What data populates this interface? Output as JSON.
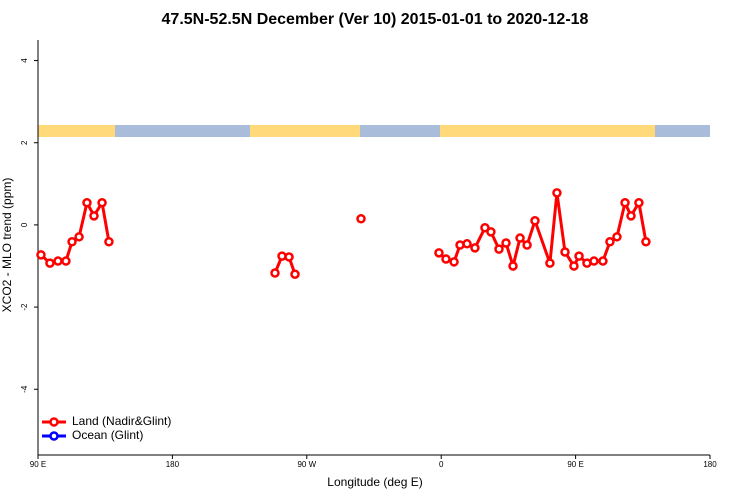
{
  "chart_data": {
    "type": "line",
    "title": "47.5N-52.5N December (Ver 10)   2015-01-01 to 2020-12-18",
    "x_label": "Longitude (deg E)",
    "y_label": "XCO2 - MLO trend (ppm)",
    "xlim": [
      90,
      540
    ],
    "ylim": [
      -5.6,
      4.5
    ],
    "xticks": [
      {
        "value": 90,
        "label": "90 E"
      },
      180,
      {
        "value": 270,
        "label": "90 W"
      },
      {
        "value": 360,
        "label": "0"
      },
      {
        "value": 450,
        "label": "90 E"
      },
      {
        "value": 540,
        "label": "180"
      }
    ],
    "yticks": [
      -4,
      -2,
      0,
      2,
      4
    ],
    "legend": "bottom-left",
    "x": [
      92.0,
      98.0,
      103.4,
      108.7,
      112.8,
      117.5,
      122.8,
      127.5,
      132.9,
      137.5,
      190,
      248.7,
      253.4,
      258.1,
      262.1,
      285,
      306.3,
      330,
      358.5,
      363.2,
      368.6,
      372.6,
      377.3,
      382.6,
      389.3,
      393.3,
      398.7,
      403.4,
      408.1,
      412.8,
      417.5,
      422.8,
      432.8,
      437.5,
      442.9,
      448.9,
      452.3,
      457.6,
      462.3,
      468.3,
      473.0,
      477.7,
      483.1,
      487.1,
      492.4,
      497.1
    ],
    "series": [
      {
        "name": "Land (Nadir&Glint)",
        "color": "#ff0000",
        "values": [
          -0.73,
          -0.93,
          -0.88,
          -0.88,
          -0.41,
          -0.29,
          0.54,
          0.22,
          0.54,
          -0.41,
          null,
          -1.17,
          -0.76,
          -0.78,
          -1.2,
          null,
          0.15,
          null,
          -0.68,
          -0.83,
          -0.9,
          -0.49,
          -0.46,
          -0.56,
          -0.07,
          -0.17,
          -0.59,
          -0.44,
          -1.0,
          -0.32,
          -0.49,
          0.1,
          -0.93,
          0.78,
          -0.66,
          -1.0,
          -0.76,
          -0.93,
          -0.88,
          -0.88,
          -0.41,
          -0.29,
          0.54,
          0.22,
          0.54,
          -0.41
        ]
      },
      {
        "name": "Ocean (Glint)",
        "color": "#0000ff",
        "values": [
          null,
          null,
          null,
          null,
          null,
          null,
          null,
          null,
          null,
          null,
          null,
          null,
          null,
          null,
          null,
          null,
          null,
          null,
          null,
          null,
          null,
          null,
          null,
          null,
          null,
          null,
          null,
          null,
          null,
          null,
          null,
          null,
          null,
          null,
          null,
          null,
          null,
          null,
          null,
          null,
          null,
          null,
          null,
          null,
          null,
          null
        ]
      }
    ]
  }
}
